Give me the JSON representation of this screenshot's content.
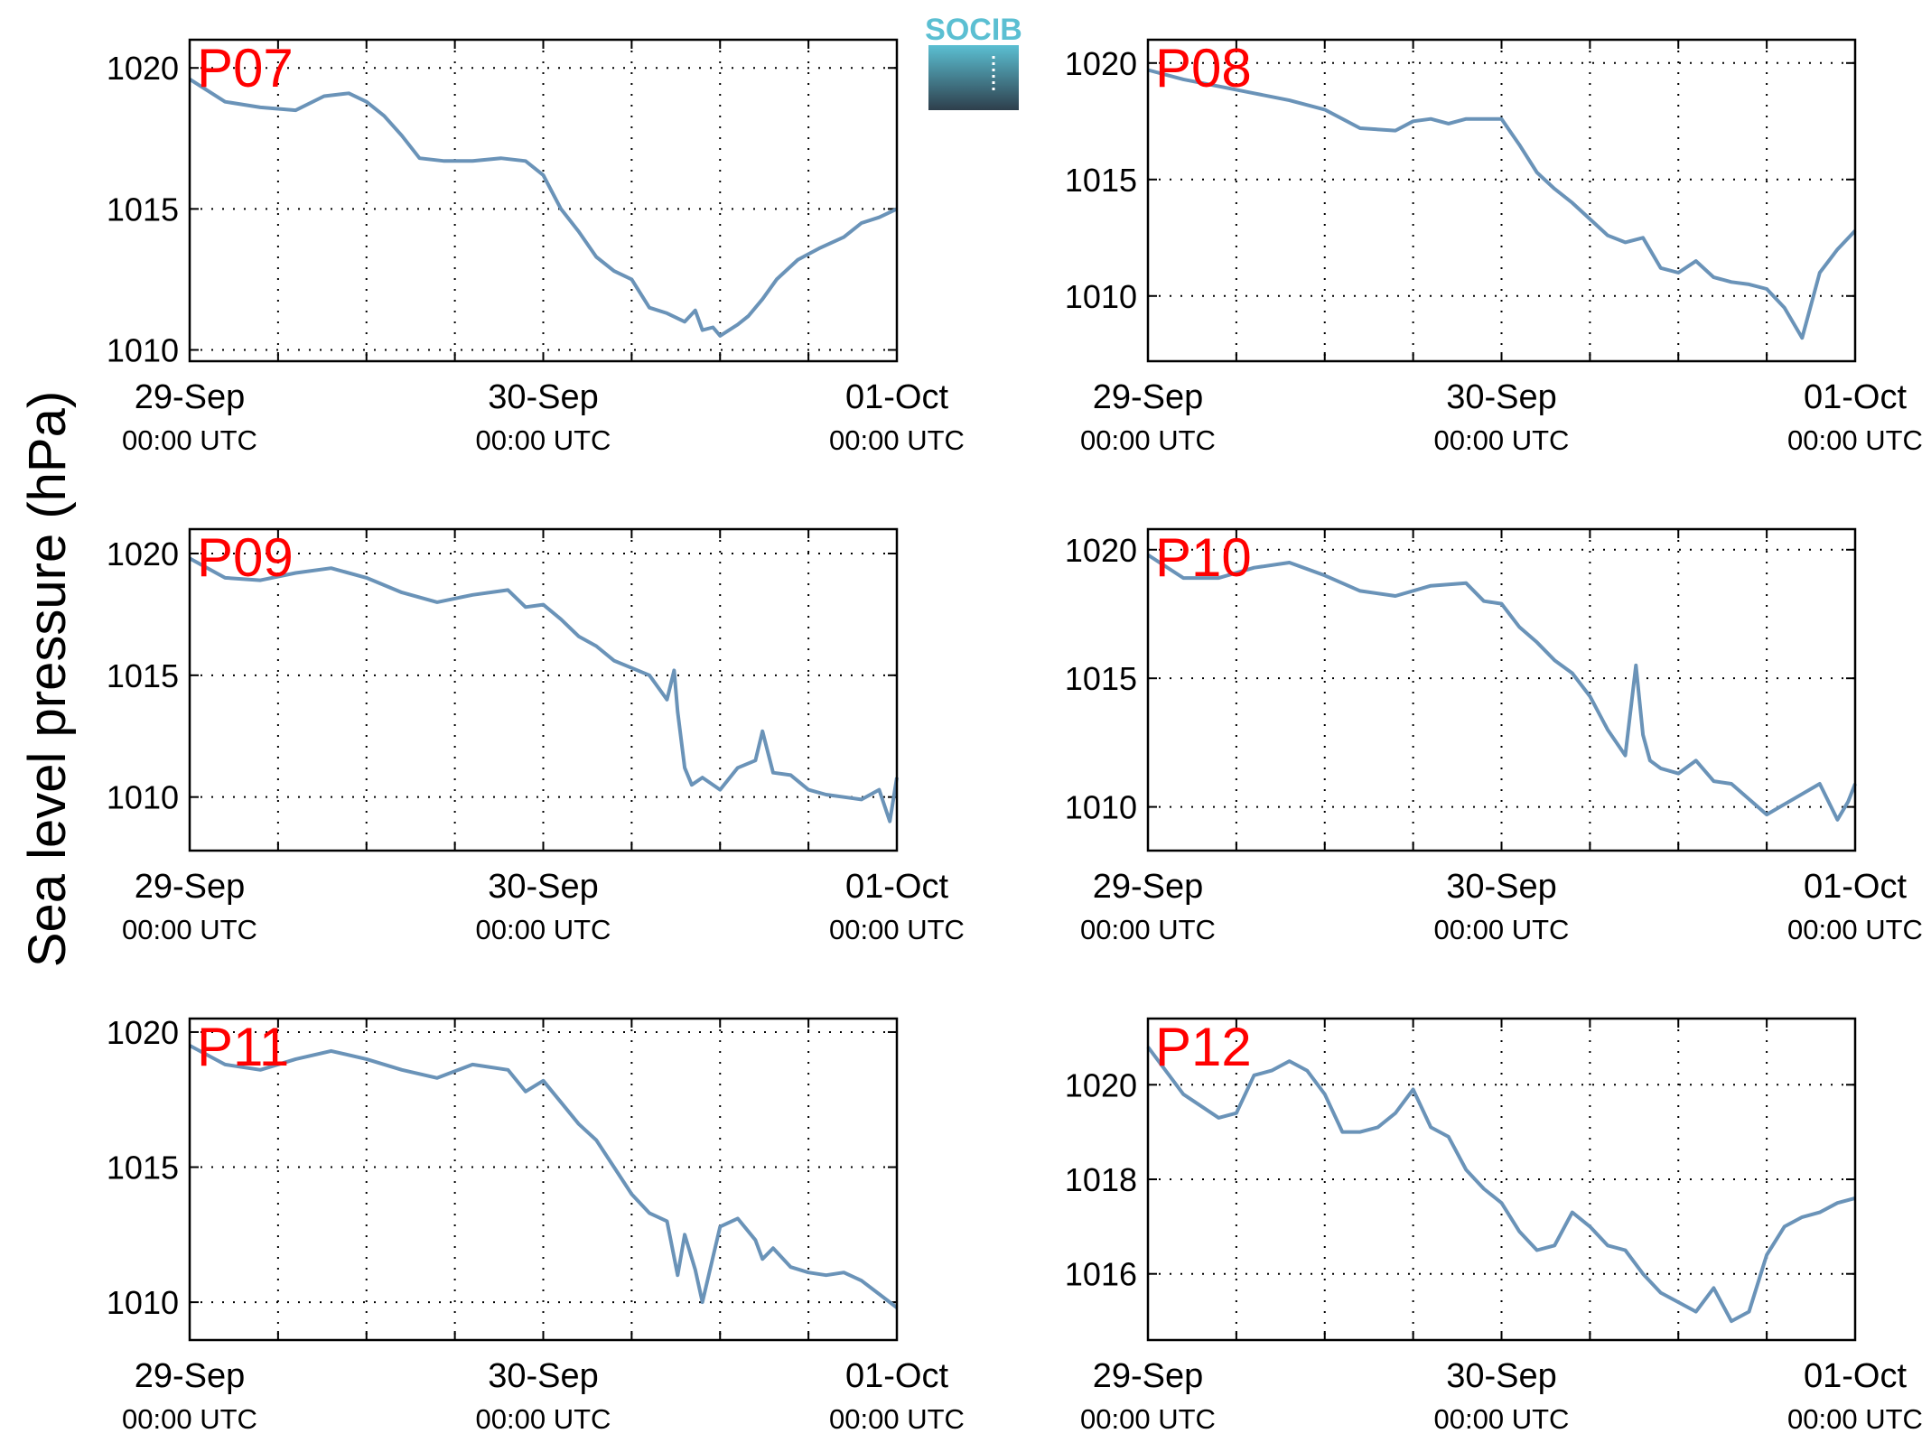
{
  "figure": {
    "ylabel": "Sea level pressure (hPa)",
    "logo_text": "SOCIB",
    "colors": {
      "line": "#6a93b8",
      "station_label": "#ff0000",
      "axis": "#000000",
      "grid": "#000000",
      "logo_top": "#5bbfd2",
      "logo_bottom": "#2e3f4c"
    }
  },
  "chart_data": [
    {
      "type": "line",
      "title": "P07",
      "xlim": [
        0,
        2
      ],
      "x_ticks": [
        0,
        1,
        2
      ],
      "x_tick_labels": [
        [
          "29-Sep",
          "00:00 UTC"
        ],
        [
          "30-Sep",
          "00:00 UTC"
        ],
        [
          "01-Oct",
          "00:00 UTC"
        ]
      ],
      "ylim": [
        1009.6,
        1021.0
      ],
      "y_ticks": [
        1010,
        1015,
        1020
      ],
      "grid": true,
      "series": [
        {
          "x": [
            0,
            0.1,
            0.2,
            0.3,
            0.38,
            0.45,
            0.5,
            0.55,
            0.6,
            0.65,
            0.72,
            0.8,
            0.88,
            0.95,
            1.0,
            1.05,
            1.1,
            1.15,
            1.2,
            1.25,
            1.3,
            1.35,
            1.4,
            1.43,
            1.45,
            1.48,
            1.5,
            1.55,
            1.58,
            1.62,
            1.66,
            1.72,
            1.78,
            1.85,
            1.9,
            1.95,
            2.0
          ],
          "y": [
            1019.6,
            1018.8,
            1018.6,
            1018.5,
            1019.0,
            1019.1,
            1018.8,
            1018.3,
            1017.6,
            1016.8,
            1016.7,
            1016.7,
            1016.8,
            1016.7,
            1016.2,
            1015.0,
            1014.2,
            1013.3,
            1012.8,
            1012.5,
            1011.5,
            1011.3,
            1011.0,
            1011.4,
            1010.7,
            1010.8,
            1010.5,
            1010.9,
            1011.2,
            1011.8,
            1012.5,
            1013.2,
            1013.6,
            1014.0,
            1014.5,
            1014.7,
            1015.0
          ]
        }
      ]
    },
    {
      "type": "line",
      "title": "P08",
      "xlim": [
        0,
        2
      ],
      "x_ticks": [
        0,
        1,
        2
      ],
      "x_tick_labels": [
        [
          "29-Sep",
          "00:00 UTC"
        ],
        [
          "30-Sep",
          "00:00 UTC"
        ],
        [
          "01-Oct",
          "00:00 UTC"
        ]
      ],
      "ylim": [
        1007.2,
        1021.0
      ],
      "y_ticks": [
        1010,
        1015,
        1020
      ],
      "grid": true,
      "series": [
        {
          "x": [
            0,
            0.1,
            0.2,
            0.3,
            0.4,
            0.5,
            0.6,
            0.7,
            0.75,
            0.8,
            0.85,
            0.9,
            1.0,
            1.05,
            1.1,
            1.15,
            1.2,
            1.25,
            1.3,
            1.35,
            1.4,
            1.45,
            1.5,
            1.55,
            1.6,
            1.65,
            1.7,
            1.75,
            1.8,
            1.85,
            1.9,
            1.95,
            2.0
          ],
          "y": [
            1019.7,
            1019.3,
            1019.0,
            1018.7,
            1018.4,
            1018.0,
            1017.2,
            1017.1,
            1017.5,
            1017.6,
            1017.4,
            1017.6,
            1017.6,
            1016.5,
            1015.3,
            1014.6,
            1014.0,
            1013.3,
            1012.6,
            1012.3,
            1012.5,
            1011.2,
            1011.0,
            1011.5,
            1010.8,
            1010.6,
            1010.5,
            1010.3,
            1009.5,
            1008.2,
            1011.0,
            1012.0,
            1012.8
          ]
        }
      ]
    },
    {
      "type": "line",
      "title": "P09",
      "xlim": [
        0,
        2
      ],
      "x_ticks": [
        0,
        1,
        2
      ],
      "x_tick_labels": [
        [
          "29-Sep",
          "00:00 UTC"
        ],
        [
          "30-Sep",
          "00:00 UTC"
        ],
        [
          "01-Oct",
          "00:00 UTC"
        ]
      ],
      "ylim": [
        1007.8,
        1021.0
      ],
      "y_ticks": [
        1010,
        1015,
        1020
      ],
      "grid": true,
      "series": [
        {
          "x": [
            0,
            0.1,
            0.2,
            0.3,
            0.4,
            0.5,
            0.6,
            0.7,
            0.8,
            0.9,
            0.95,
            1.0,
            1.05,
            1.1,
            1.15,
            1.2,
            1.25,
            1.3,
            1.35,
            1.37,
            1.38,
            1.4,
            1.42,
            1.45,
            1.5,
            1.55,
            1.6,
            1.62,
            1.65,
            1.7,
            1.75,
            1.8,
            1.85,
            1.9,
            1.95,
            1.98,
            2.0
          ],
          "y": [
            1019.8,
            1019.0,
            1018.9,
            1019.2,
            1019.4,
            1019.0,
            1018.4,
            1018.0,
            1018.3,
            1018.5,
            1017.8,
            1017.9,
            1017.3,
            1016.6,
            1016.2,
            1015.6,
            1015.3,
            1015.0,
            1014.0,
            1015.2,
            1013.5,
            1011.2,
            1010.5,
            1010.8,
            1010.3,
            1011.2,
            1011.5,
            1012.7,
            1011.0,
            1010.9,
            1010.3,
            1010.1,
            1010.0,
            1009.9,
            1010.3,
            1009.0,
            1010.8
          ]
        }
      ]
    },
    {
      "type": "line",
      "title": "P10",
      "xlim": [
        0,
        2
      ],
      "x_ticks": [
        0,
        1,
        2
      ],
      "x_tick_labels": [
        [
          "29-Sep",
          "00:00 UTC"
        ],
        [
          "30-Sep",
          "00:00 UTC"
        ],
        [
          "01-Oct",
          "00:00 UTC"
        ]
      ],
      "ylim": [
        1008.3,
        1020.8
      ],
      "y_ticks": [
        1010,
        1015,
        1020
      ],
      "grid": true,
      "series": [
        {
          "x": [
            0,
            0.1,
            0.2,
            0.3,
            0.4,
            0.5,
            0.6,
            0.7,
            0.8,
            0.9,
            0.95,
            1.0,
            1.05,
            1.1,
            1.15,
            1.2,
            1.25,
            1.3,
            1.35,
            1.38,
            1.4,
            1.42,
            1.45,
            1.5,
            1.55,
            1.6,
            1.65,
            1.7,
            1.75,
            1.8,
            1.85,
            1.9,
            1.95,
            1.98,
            2.0
          ],
          "y": [
            1019.8,
            1018.9,
            1018.9,
            1019.3,
            1019.5,
            1019.0,
            1018.4,
            1018.2,
            1018.6,
            1018.7,
            1018.0,
            1017.9,
            1017.0,
            1016.4,
            1015.7,
            1015.2,
            1014.3,
            1013.0,
            1012.0,
            1015.5,
            1012.8,
            1011.8,
            1011.5,
            1011.3,
            1011.8,
            1011.0,
            1010.9,
            1010.3,
            1009.7,
            1010.1,
            1010.5,
            1010.9,
            1009.5,
            1010.2,
            1010.9
          ]
        }
      ]
    },
    {
      "type": "line",
      "title": "P11",
      "xlim": [
        0,
        2
      ],
      "x_ticks": [
        0,
        1,
        2
      ],
      "x_tick_labels": [
        [
          "29-Sep",
          "00:00 UTC"
        ],
        [
          "30-Sep",
          "00:00 UTC"
        ],
        [
          "01-Oct",
          "00:00 UTC"
        ]
      ],
      "ylim": [
        1008.6,
        1020.5
      ],
      "y_ticks": [
        1010,
        1015,
        1020
      ],
      "grid": true,
      "series": [
        {
          "x": [
            0,
            0.1,
            0.2,
            0.3,
            0.4,
            0.5,
            0.6,
            0.7,
            0.8,
            0.9,
            0.95,
            1.0,
            1.05,
            1.1,
            1.15,
            1.2,
            1.25,
            1.3,
            1.35,
            1.38,
            1.4,
            1.43,
            1.45,
            1.5,
            1.55,
            1.6,
            1.62,
            1.65,
            1.7,
            1.75,
            1.8,
            1.85,
            1.9,
            1.95,
            2.0
          ],
          "y": [
            1019.5,
            1018.8,
            1018.6,
            1019.0,
            1019.3,
            1019.0,
            1018.6,
            1018.3,
            1018.8,
            1018.6,
            1017.8,
            1018.2,
            1017.4,
            1016.6,
            1016.0,
            1015.0,
            1014.0,
            1013.3,
            1013.0,
            1011.0,
            1012.5,
            1011.2,
            1010.0,
            1012.8,
            1013.1,
            1012.3,
            1011.6,
            1012.0,
            1011.3,
            1011.1,
            1011.0,
            1011.1,
            1010.8,
            1010.3,
            1009.8
          ]
        }
      ]
    },
    {
      "type": "line",
      "title": "P12",
      "xlim": [
        0,
        2
      ],
      "x_ticks": [
        0,
        1,
        2
      ],
      "x_tick_labels": [
        [
          "29-Sep",
          "00:00 UTC"
        ],
        [
          "30-Sep",
          "00:00 UTC"
        ],
        [
          "01-Oct",
          "00:00 UTC"
        ]
      ],
      "ylim": [
        1014.6,
        1021.4
      ],
      "y_ticks": [
        1016,
        1018,
        1020
      ],
      "grid": true,
      "series": [
        {
          "x": [
            0,
            0.1,
            0.2,
            0.25,
            0.3,
            0.35,
            0.4,
            0.45,
            0.5,
            0.55,
            0.6,
            0.65,
            0.7,
            0.75,
            0.8,
            0.85,
            0.9,
            0.95,
            1.0,
            1.05,
            1.1,
            1.15,
            1.2,
            1.25,
            1.3,
            1.35,
            1.4,
            1.45,
            1.5,
            1.55,
            1.6,
            1.65,
            1.7,
            1.75,
            1.8,
            1.85,
            1.9,
            1.95,
            2.0
          ],
          "y": [
            1020.8,
            1019.8,
            1019.3,
            1019.4,
            1020.2,
            1020.3,
            1020.5,
            1020.3,
            1019.8,
            1019.0,
            1019.0,
            1019.1,
            1019.4,
            1019.9,
            1019.1,
            1018.9,
            1018.2,
            1017.8,
            1017.5,
            1016.9,
            1016.5,
            1016.6,
            1017.3,
            1017.0,
            1016.6,
            1016.5,
            1016.0,
            1015.6,
            1015.4,
            1015.2,
            1015.7,
            1015.0,
            1015.2,
            1016.4,
            1017.0,
            1017.2,
            1017.3,
            1017.5,
            1017.6
          ]
        }
      ]
    }
  ]
}
